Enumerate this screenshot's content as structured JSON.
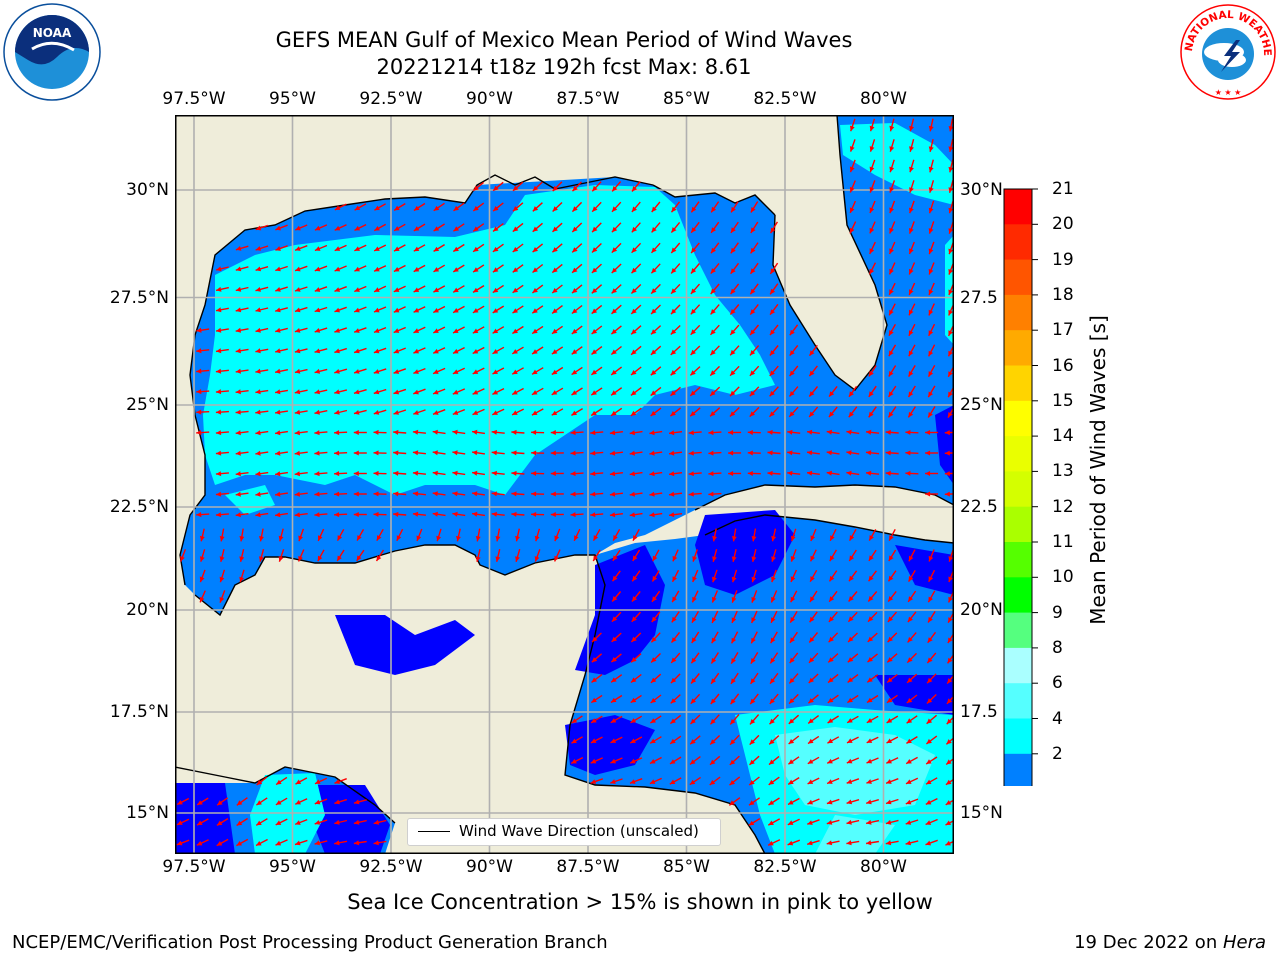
{
  "header": {
    "title_line1": "GEFS MEAN Gulf of Mexico Mean Period of Wind Waves",
    "title_line2": "20221214 t18z 192h fcst   Max: 8.61"
  },
  "map": {
    "lon_ticks": [
      "97.5°W",
      "95°W",
      "92.5°W",
      "90°W",
      "87.5°W",
      "85°W",
      "82.5°W",
      "80°W"
    ],
    "lat_ticks_left": [
      "30°N",
      "27.5°N",
      "25°N",
      "22.5°N",
      "20°N",
      "17.5°N",
      "15°N"
    ],
    "lat_ticks_right": [
      "30°N",
      "27.5",
      "25°N",
      "22.5",
      "20°N",
      "17.5",
      "15°N"
    ],
    "legend_label": "Wind Wave Direction (unscaled)",
    "colors": {
      "land": "#efedda",
      "arrow": "#ff0000",
      "grid": "#b0b0b0"
    }
  },
  "colorbar": {
    "title": "Mean Period of Wind Waves [s]",
    "labels": [
      "21",
      "20",
      "19",
      "18",
      "17",
      "16",
      "15",
      "14",
      "13",
      "12",
      "11",
      "10",
      "9",
      "8",
      "6",
      "4",
      "2"
    ],
    "colors": [
      "#ff0000",
      "#ff2a00",
      "#ff5500",
      "#ff8000",
      "#ffaa00",
      "#ffd400",
      "#ffff00",
      "#eaff00",
      "#d4ff00",
      "#aaff00",
      "#55ff00",
      "#00ff00",
      "#55ff7f",
      "#aaffff",
      "#55ffff",
      "#00ffff",
      "#0080ff"
    ],
    "under_color": "#0000ff"
  },
  "note": "Sea Ice Concentration > 15% is shown in pink to yellow",
  "footer": {
    "left": "NCEP/EMC/Verification Post Processing Product Generation Branch",
    "right_prefix": "19 Dec 2022 on ",
    "right_host": "Hera"
  },
  "logos": {
    "left": "NOAA",
    "right": "NATIONAL WEATHER SERVICE"
  }
}
